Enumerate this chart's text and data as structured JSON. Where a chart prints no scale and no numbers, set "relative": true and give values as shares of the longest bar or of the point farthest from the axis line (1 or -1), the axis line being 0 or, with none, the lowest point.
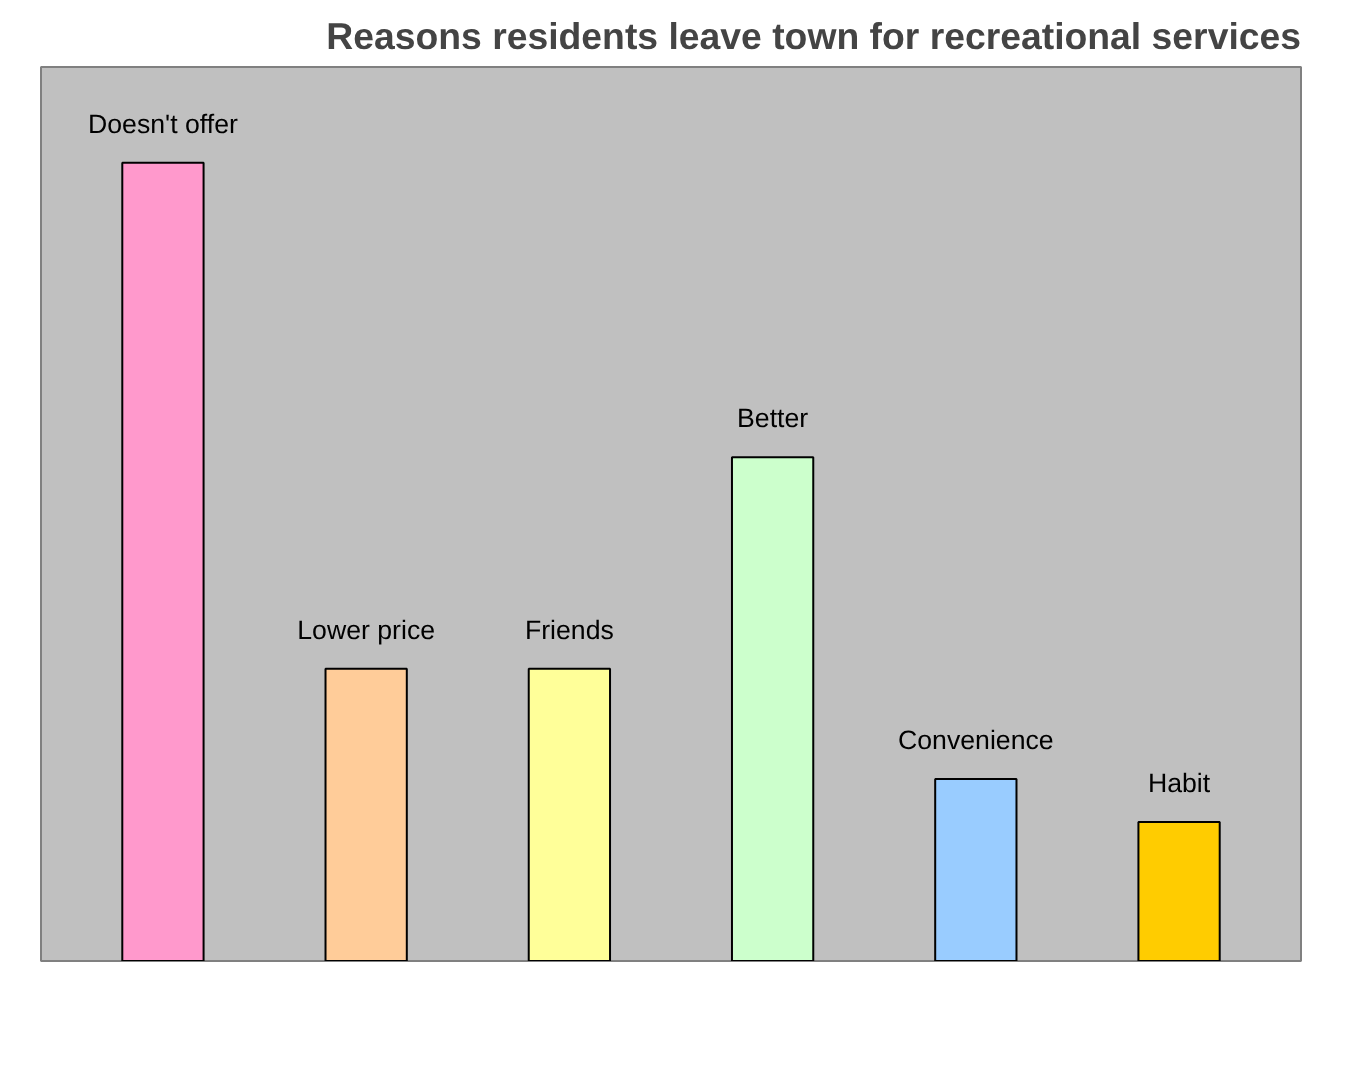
{
  "chart_data": {
    "type": "bar",
    "title": "Reasons residents leave town for recreational services",
    "relative": true,
    "categories": [
      "Doesn't offer",
      "Lower price",
      "Friends",
      "Better",
      "Convenience",
      "Habit"
    ],
    "values": [
      1,
      0.366,
      0.366,
      0.631,
      0.228,
      0.174
    ],
    "colors": [
      "#ff99cc",
      "#ffcc99",
      "#ffff99",
      "#ccffcc",
      "#99ccff",
      "#ffcc00"
    ],
    "grid": false
  }
}
